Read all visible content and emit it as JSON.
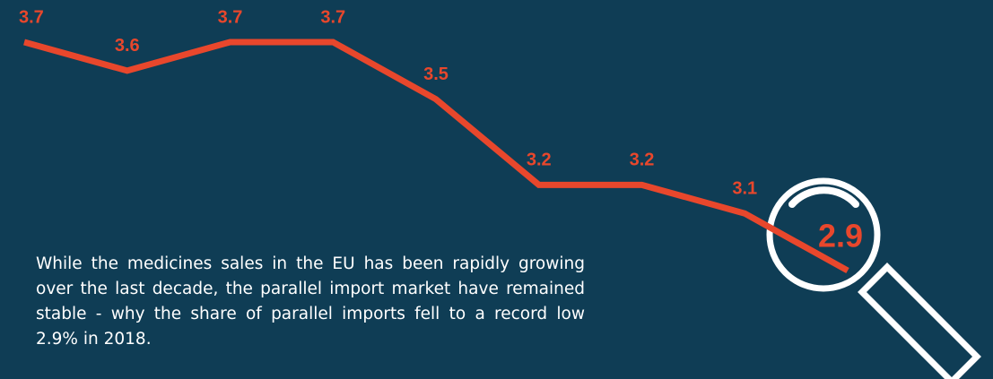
{
  "chart_data": {
    "type": "line",
    "categories": [
      null,
      null,
      null,
      null,
      null,
      null,
      null,
      null,
      null
    ],
    "series": [
      {
        "color": "#e8472c",
        "values": [
          3.7,
          3.6,
          3.7,
          3.7,
          3.5,
          3.2,
          3.2,
          3.1,
          2.9
        ]
      }
    ],
    "annotation": "While the medicines sales in the EU has been rapidly growing over the last decade, the parallel import market have remained stable - why the share of parallel imports fell to a record low 2.9% in 2018."
  }
}
